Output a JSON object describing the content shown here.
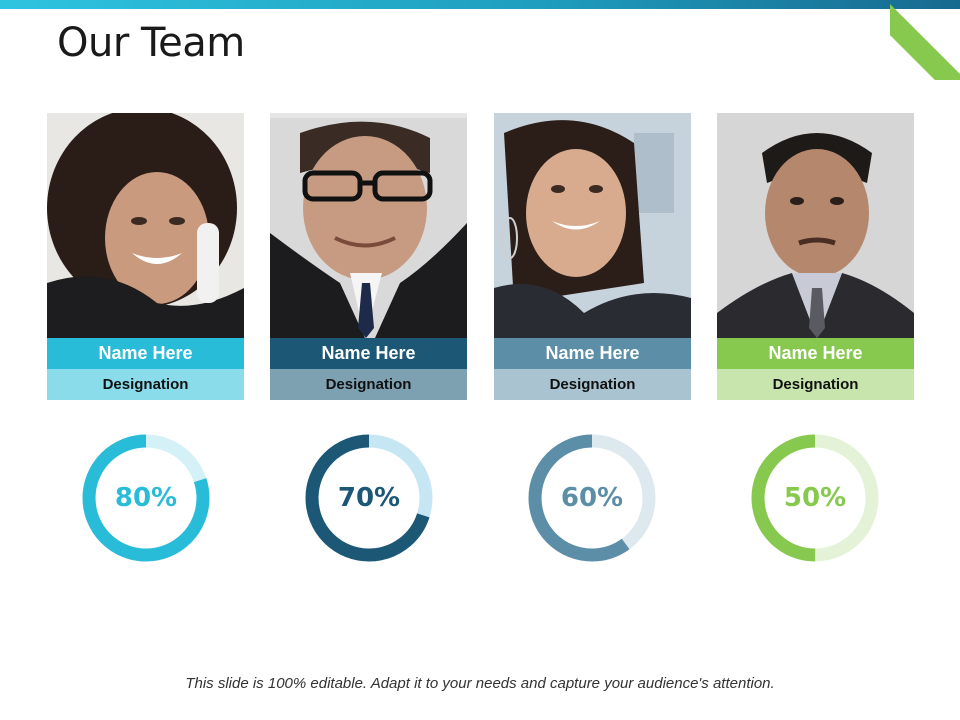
{
  "slide": {
    "title": "Our Team",
    "footer": "This slide is 100% editable. Adapt it to your needs and capture your audience's attention."
  },
  "members": [
    {
      "name": "Name Here",
      "designation": "Designation",
      "percent_label": "80%",
      "percent": 80,
      "name_color": "#29bcd8",
      "desig_color": "#8adcea",
      "ring_color": "#29bcd8",
      "track_color": "#d3f1f7",
      "photo_icon": "woman-on-phone-photo"
    },
    {
      "name": "Name Here",
      "designation": "Designation",
      "percent_label": "70%",
      "percent": 70,
      "name_color": "#1c5876",
      "desig_color": "#7ea1b2",
      "ring_color": "#1c5876",
      "track_color": "#c7e6f4",
      "photo_icon": "man-with-glasses-photo"
    },
    {
      "name": "Name Here",
      "designation": "Designation",
      "percent_label": "60%",
      "percent": 60,
      "name_color": "#5d8ea8",
      "desig_color": "#a9c3d0",
      "ring_color": "#5d8ea8",
      "track_color": "#dde9ef",
      "photo_icon": "woman-smiling-photo"
    },
    {
      "name": "Name Here",
      "designation": "Designation",
      "percent_label": "50%",
      "percent": 50,
      "name_color": "#86c94e",
      "desig_color": "#c9e5ae",
      "ring_color": "#86c94e",
      "track_color": "#e4f3d7",
      "photo_icon": "man-in-suit-photo"
    }
  ]
}
